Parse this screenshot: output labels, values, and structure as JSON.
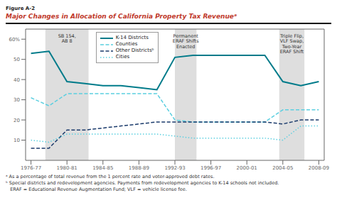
{
  "chart_data": {
    "type": "line",
    "subtitle": "Figure A-2",
    "title": "Major Changes in Allocation of California Property Tax Revenueᵃ",
    "x": [
      0,
      1,
      2,
      3,
      4,
      5,
      6,
      7,
      8,
      9,
      10,
      11,
      12,
      13,
      14,
      15,
      16
    ],
    "xlim": [
      -0.3,
      16.3
    ],
    "xticks": [
      {
        "value": 0,
        "label": "1976-77"
      },
      {
        "value": 2,
        "label": "1980-81"
      },
      {
        "value": 4,
        "label": "1984-85"
      },
      {
        "value": 6,
        "label": "1988-89"
      },
      {
        "value": 8,
        "label": "1992-93"
      },
      {
        "value": 10,
        "label": "1996-97"
      },
      {
        "value": 12,
        "label": "2000-01"
      },
      {
        "value": 14,
        "label": "2004-05"
      },
      {
        "value": 16,
        "label": "2008-09"
      }
    ],
    "ylim": [
      0,
      65
    ],
    "yticks": [
      10,
      20,
      30,
      40,
      50,
      {
        "value": 60,
        "label": "60%"
      }
    ],
    "series": [
      {
        "name": "K-14 Districts",
        "color": "#007b8a",
        "line_style": "solid",
        "values": [
          53,
          54,
          39,
          38,
          37,
          37,
          36,
          35,
          51,
          52,
          52,
          52,
          52,
          52,
          39,
          37,
          39
        ]
      },
      {
        "name": "Counties",
        "color": "#5bcfe0",
        "line_style": "dashed",
        "values": [
          31,
          27,
          33,
          33,
          33,
          33,
          33,
          33,
          20,
          19,
          19,
          19,
          19,
          19,
          25,
          25,
          25
        ]
      },
      {
        "name": "Other Districtsᵇ",
        "color": "#1a3a6b",
        "line_style": "dashed",
        "values": [
          6,
          6,
          15,
          15,
          16,
          17,
          18,
          19,
          19,
          19,
          19,
          19,
          19,
          19,
          18,
          20,
          20
        ]
      },
      {
        "name": "Cities",
        "color": "#5bcfe0",
        "line_style": "dotted",
        "values": [
          10,
          9,
          13,
          13,
          13,
          13,
          13,
          13,
          12,
          11,
          11,
          11,
          11,
          11,
          10,
          17,
          17
        ]
      }
    ],
    "shaded_regions": [
      [
        0.8,
        3.2
      ],
      [
        8.0,
        9.2
      ],
      [
        13.8,
        15.2
      ]
    ],
    "annotations": [
      {
        "x": 2.0,
        "y": 63,
        "text": "SB 154,\nAB 8"
      },
      {
        "x": 8.6,
        "y": 63,
        "text": "Permanent\nERAF Shifts\nEnacted"
      },
      {
        "x": 14.5,
        "y": 63,
        "text": "Triple Flip,\nVLF Swap,\nTwo-Year\nERAF Shift"
      }
    ],
    "legend": "upper left",
    "grid": false,
    "footnotes": [
      "ᵃ As a percentage of total revenue from the 1 percent rate and voter-approved debt rates.",
      "ᵇ Special districts and redevelopment agencies. Payments from redevelopment agencies to K-14 schools not included.",
      "   ERAF = Educational Revenue Augmentation Fund; VLF = vehicle license fee."
    ]
  }
}
